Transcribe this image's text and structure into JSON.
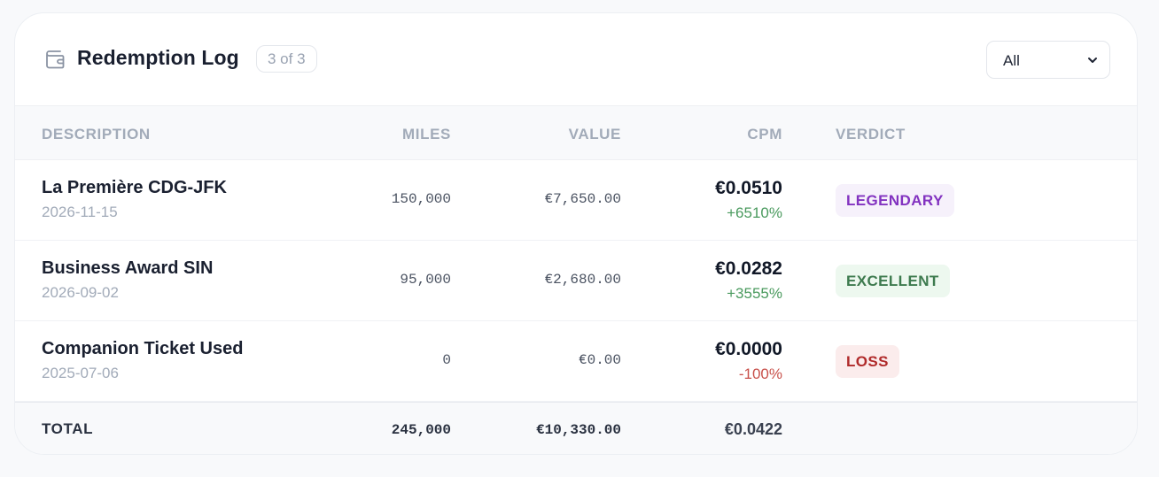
{
  "header": {
    "title": "Redemption Log",
    "count_badge": "3 of 3",
    "filter_value": "All"
  },
  "columns": {
    "description": "DESCRIPTION",
    "miles": "MILES",
    "value": "VALUE",
    "cpm": "CPM",
    "verdict": "VERDICT"
  },
  "rows": [
    {
      "description": "La Première CDG-JFK",
      "date": "2026-11-15",
      "miles": "150,000",
      "value": "€7,650.00",
      "cpm": "€0.0510",
      "change": "+6510%",
      "verdict": "LEGENDARY"
    },
    {
      "description": "Business Award SIN",
      "date": "2026-09-02",
      "miles": "95,000",
      "value": "€2,680.00",
      "cpm": "€0.0282",
      "change": "+3555%",
      "verdict": "EXCELLENT"
    },
    {
      "description": "Companion Ticket Used",
      "date": "2025-07-06",
      "miles": "0",
      "value": "€0.00",
      "cpm": "€0.0000",
      "change": "-100%",
      "verdict": "LOSS"
    }
  ],
  "totals": {
    "label": "TOTAL",
    "miles": "245,000",
    "value": "€10,330.00",
    "cpm": "€0.0422"
  },
  "colors": {
    "legendary": "#8232c0",
    "excellent": "#3d7a4e",
    "loss": "#b02a2a",
    "positive": "#4a9a5e",
    "negative": "#c8504a"
  }
}
